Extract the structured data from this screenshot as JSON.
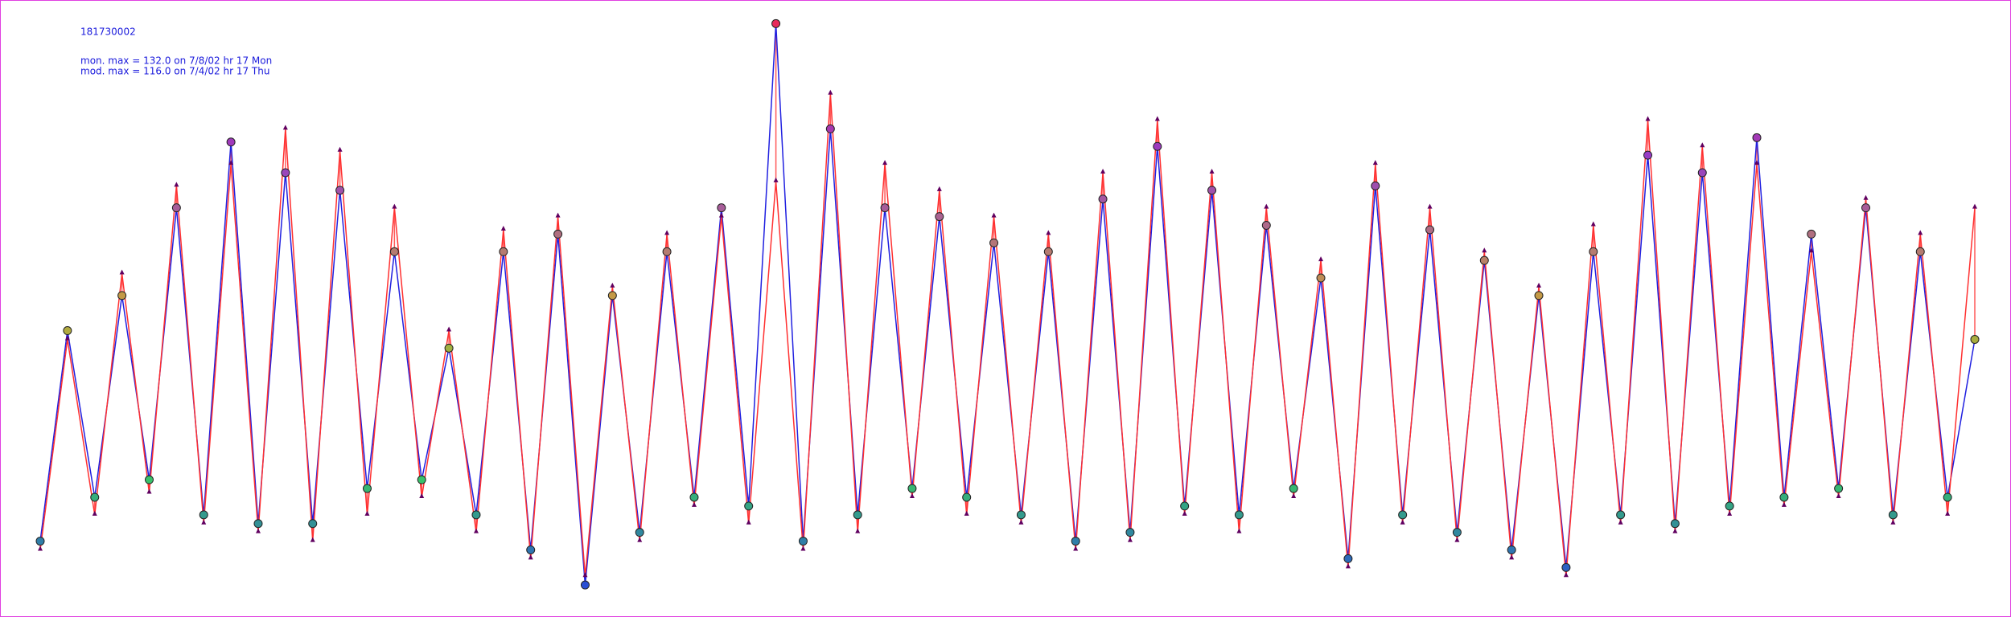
{
  "chart_data": {
    "type": "line",
    "title": "181730002",
    "annotations": [
      "mon. max =  132.0 on 7/8/02 hr 17 Mon",
      "mod. max =  116.0 on 7/4/02 hr 17 Thu"
    ],
    "ylim": [
      0,
      135
    ],
    "series": [
      {
        "color": "#2020e0",
        "values": [
          14,
          62,
          24,
          70,
          28,
          90,
          20,
          105,
          18,
          98,
          18,
          94,
          26,
          80,
          28,
          58,
          20,
          80,
          12,
          84,
          4,
          70,
          16,
          80,
          24,
          90,
          22,
          132,
          14,
          108,
          20,
          90,
          26,
          88,
          24,
          82,
          20,
          80,
          14,
          92,
          16,
          104,
          22,
          94,
          20,
          86,
          26,
          74,
          10,
          95,
          20,
          85,
          16,
          78,
          12,
          70,
          8,
          80,
          20,
          102,
          18,
          98,
          22,
          106,
          24,
          84,
          26,
          90,
          20,
          80,
          24,
          60
        ]
      },
      {
        "color": "#ff3030",
        "values": [
          12,
          60,
          20,
          75,
          25,
          95,
          18,
          100,
          16,
          108,
          14,
          103,
          20,
          90,
          24,
          62,
          16,
          85,
          10,
          88,
          6,
          72,
          14,
          84,
          22,
          88,
          18,
          96,
          12,
          116,
          16,
          100,
          24,
          94,
          20,
          88,
          18,
          84,
          12,
          98,
          14,
          110,
          20,
          98,
          16,
          90,
          24,
          78,
          8,
          100,
          18,
          90,
          14,
          80,
          10,
          72,
          6,
          86,
          18,
          110,
          16,
          104,
          20,
          100,
          22,
          80,
          24,
          92,
          18,
          84,
          20,
          90
        ]
      }
    ]
  }
}
